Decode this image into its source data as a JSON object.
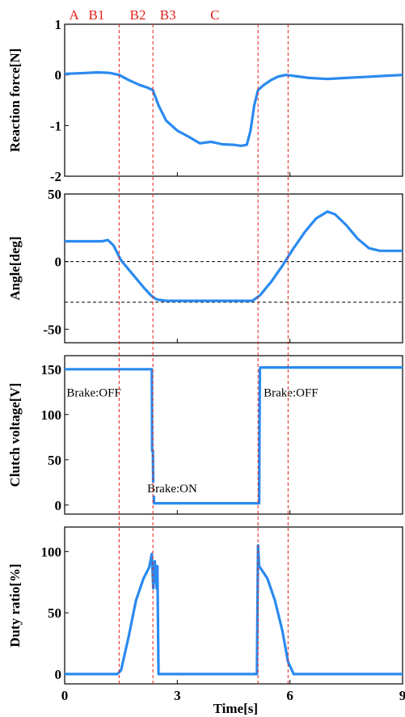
{
  "chart_data": {
    "type": "line",
    "xlabel": "Time[s]",
    "x_ticks": [
      "0",
      "3",
      "6",
      "9"
    ],
    "xlim": [
      0,
      9
    ],
    "line_color": "#2a8af0",
    "divider_color": "#e0201b",
    "phases": {
      "labels": [
        "A",
        "B1",
        "B2",
        "B3",
        "C"
      ],
      "centers": [
        0.25,
        0.85,
        1.95,
        2.75,
        4.0
      ],
      "boundaries": [
        1.45,
        2.35,
        5.15,
        5.95
      ]
    },
    "panels": [
      {
        "ylabel": "Reaction force[N]",
        "ylim": [
          -2,
          1
        ],
        "y_ticks": [
          1,
          0,
          -1,
          -2
        ],
        "y_tick_labels": [
          "1",
          "0",
          "-1",
          "-2"
        ],
        "hlines": [],
        "annotations": [],
        "series": [
          {
            "x": [
              0,
              0.3,
              0.6,
              0.9,
              1.2,
              1.45,
              1.7,
              2.0,
              2.2,
              2.35,
              2.5,
              2.7,
              3.0,
              3.3,
              3.6,
              3.9,
              4.2,
              4.5,
              4.7,
              4.85,
              4.95,
              5.05,
              5.15,
              5.3,
              5.5,
              5.7,
              5.9,
              6.2,
              6.5,
              7.0,
              7.5,
              8.0,
              8.5,
              9.0
            ],
            "y": [
              0.02,
              0.03,
              0.04,
              0.05,
              0.04,
              0.0,
              -0.1,
              -0.2,
              -0.25,
              -0.3,
              -0.6,
              -0.9,
              -1.1,
              -1.22,
              -1.35,
              -1.32,
              -1.37,
              -1.38,
              -1.4,
              -1.38,
              -1.1,
              -0.6,
              -0.3,
              -0.2,
              -0.1,
              -0.03,
              0.0,
              -0.03,
              -0.06,
              -0.08,
              -0.06,
              -0.04,
              -0.02,
              0.0
            ]
          }
        ]
      },
      {
        "ylabel": "Angle[deg]",
        "ylim": [
          -60,
          50
        ],
        "y_ticks": [
          50,
          0,
          -50
        ],
        "y_tick_labels": [
          "50",
          "0",
          "-50"
        ],
        "hlines": [
          0,
          -30
        ],
        "annotations": [],
        "series": [
          {
            "x": [
              0,
              0.5,
              1.0,
              1.15,
              1.3,
              1.5,
              1.8,
              2.1,
              2.3,
              2.45,
              2.7,
              3.0,
              3.5,
              4.0,
              4.5,
              5.0,
              5.2,
              5.5,
              5.8,
              6.1,
              6.4,
              6.7,
              7.0,
              7.2,
              7.5,
              7.8,
              8.1,
              8.4,
              8.7,
              9.0
            ],
            "y": [
              15,
              15,
              15,
              16,
              12,
              1,
              -9,
              -19,
              -25,
              -28,
              -29,
              -29,
              -29,
              -29,
              -29,
              -29,
              -25,
              -15,
              -3,
              10,
              22,
              32,
              37,
              35,
              27,
              17,
              10,
              8,
              8,
              8
            ]
          }
        ]
      },
      {
        "ylabel": "Clutch voltage[V]",
        "ylim": [
          -10,
          165
        ],
        "y_ticks": [
          150,
          100,
          50,
          0
        ],
        "y_tick_labels": [
          "150",
          "100",
          "50",
          "0"
        ],
        "hlines": [],
        "annotations": [
          {
            "text": "Brake:OFF",
            "x": 0.05,
            "y": 120
          },
          {
            "text": "Brake:ON",
            "x": 2.2,
            "y": 14
          },
          {
            "text": "Brake:OFF",
            "x": 5.3,
            "y": 120
          }
        ],
        "series": [
          {
            "x": [
              0,
              2.32,
              2.33,
              2.35,
              2.36,
              2.37,
              2.38,
              5.18,
              5.19,
              5.2,
              5.21,
              9.0
            ],
            "y": [
              150,
              150,
              60,
              60,
              20,
              20,
              2,
              2,
              80,
              150,
              152,
              152
            ]
          }
        ]
      },
      {
        "ylabel": "Duty ratio[%]",
        "ylim": [
          -8,
          120
        ],
        "y_ticks": [
          100,
          50,
          0
        ],
        "y_tick_labels": [
          "100",
          "50",
          "0"
        ],
        "hlines": [],
        "annotations": [],
        "series": [
          {
            "x": [
              0,
              1.4,
              1.5,
              1.7,
              1.9,
              2.1,
              2.25,
              2.32,
              2.36,
              2.4,
              2.45,
              2.47,
              2.5,
              2.55,
              3.0,
              4.0,
              5.0,
              5.12,
              5.15,
              5.18,
              5.25,
              5.4,
              5.6,
              5.8,
              5.95,
              6.1,
              9.0
            ],
            "y": [
              0,
              0,
              3,
              30,
              60,
              78,
              87,
              98,
              70,
              92,
              70,
              88,
              0,
              0,
              0,
              0,
              0,
              0,
              105,
              88,
              85,
              78,
              60,
              35,
              10,
              0,
              0
            ]
          }
        ]
      }
    ]
  }
}
